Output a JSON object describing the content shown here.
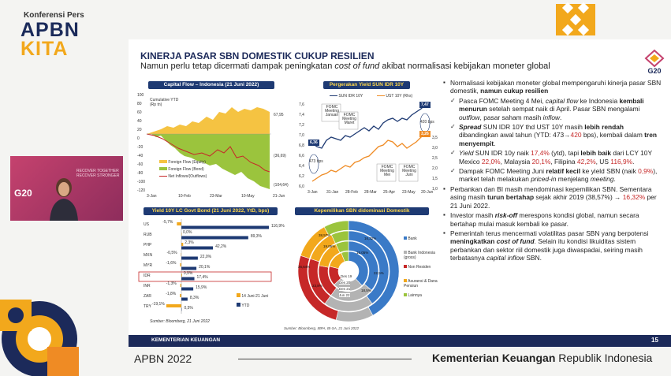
{
  "brand": {
    "small": "Konferensi Pers",
    "apbn": "APBN",
    "kita": "KITA"
  },
  "colors": {
    "navy": "#1c2a5a",
    "gold": "#f2a81c",
    "equity": "#f5c342",
    "bond": "#9bc43d",
    "net": "#c62828",
    "sun": "#1e3a73",
    "ust": "#ef8b24"
  },
  "slide": {
    "title": "KINERJA PASAR SBN DOMESTIK CUKUP RESILIEN",
    "subtitle_a": "Namun perlu tetap dicermati dampak peningkatan ",
    "subtitle_i": "cost of fund",
    "subtitle_b": " akibat normalisasi kebijakan moneter global",
    "page_number": "15",
    "footer_org": "KEMENTERIAN KEUANGAN",
    "source": "Sumber: Bloomberg, IBPA, BI-SA, 21 Juni 2022"
  },
  "capital_flow": {
    "title": "Capital Flow – Indonesia (21 Juni 2022)",
    "unit_label": "Cumulative YTD",
    "unit_label2": "(Rp tn)",
    "y_ticks": [
      "100",
      "80",
      "60",
      "40",
      "20",
      "0",
      "-20",
      "-40",
      "-60",
      "-80",
      "-100",
      "-120"
    ],
    "x_ticks": [
      "3-Jan",
      "10-Feb",
      "23-Mar",
      "10-May",
      "21-Jun"
    ],
    "legend": [
      "Foreign Flow (Equity)",
      "Foreign Flow (Bond)",
      "Net Inflows/(Outflows)"
    ],
    "end_labels": [
      "67,95",
      "(36,69)",
      "(104,64)"
    ]
  },
  "yield_chart": {
    "title": "Pergerakan Yield SUN IDR 10Y",
    "legend_sun": "SUN IDR 10Y",
    "legend_ust": "UST 10Y (Rhs)",
    "y_left": [
      "7,6",
      "7,4",
      "7,2",
      "7,0",
      "6,8",
      "6,6",
      "6,4",
      "6,2",
      "6,0"
    ],
    "y_right": [
      "3,5",
      "3,0",
      "2,5",
      "2,0",
      "1,5",
      "1,0"
    ],
    "x_ticks": [
      "3-Jan",
      "31-Jan",
      "28-Feb",
      "28-Mar",
      "25-Apr",
      "23-May",
      "20-Jun"
    ],
    "annotations": [
      "FOMC Meeting Januari",
      "FOMC Meeting Maret",
      "FOMC Meeting Mei",
      "FOMC Meeting Juni"
    ],
    "labels": {
      "start_sun": "6,36",
      "end_sun": "7,47",
      "end_ust": "3,26",
      "bps_left": "473 bps",
      "bps_right": "420 bps"
    }
  },
  "govt_bond": {
    "title": "Yield 10Y LC Govt Bond (21 Juni 2022, YtD, bps)",
    "countries": [
      "US",
      "RUB",
      "PHP",
      "MXN",
      "MYR",
      "IDR",
      "INR",
      "ZAR",
      "TRY"
    ],
    "ytd_labels": [
      "116,9%",
      "89,3%",
      "42,2%",
      "22,0%",
      "20,1%",
      "17,4%",
      "15,9%",
      "8,3%",
      "0,5%"
    ],
    "week_labels": [
      "-5,7%",
      "0,0%",
      "2,3%",
      "-0,5%",
      "-1,6%",
      "0,9%",
      "-1,3%",
      "-1,8%",
      "-19,1%"
    ],
    "ytd": [
      116.9,
      89.3,
      42.2,
      22.0,
      20.1,
      17.4,
      15.9,
      8.3,
      0.5
    ],
    "week": [
      -5.7,
      0.0,
      2.3,
      -0.5,
      -1.6,
      0.9,
      -1.3,
      -1.8,
      -19.1
    ],
    "legend": [
      "14 Juni-21 Juni",
      "YTD"
    ],
    "source": "Sumber: Bloomberg, 21 Juni 2022"
  },
  "ownership": {
    "title": "Kepemilikan SBN didominasi Domestik",
    "legend": [
      "Bank",
      "Bank Indonesia (gross)",
      "Non Residen",
      "Asuransi & Dana Pensiun",
      "Lainnya"
    ],
    "ring_labels": [
      "Des 19",
      "Des 20",
      "Des 21",
      "Jun 22"
    ],
    "slice_labels": [
      "38,57%",
      "16,32%",
      "26,64%",
      "22,5%",
      "19,05%",
      "15,05%",
      "23,8%",
      "18,5%"
    ]
  },
  "bullets": [
    {
      "level": 1,
      "html": "Normalisasi kebijakan moneter global mempengaruhi kinerja pasar SBN domestik, <b>namun cukup resilien</b>"
    },
    {
      "level": 2,
      "html": "Pasca FOMC Meeting 4 Mei, <i>capital flow</i> ke Indonesia <b>kembali menurun</b> setelah sempat naik di April. Pasar SBN mengalami <i>outflow</i>, pasar saham masih <i>inflow</i>."
    },
    {
      "level": 2,
      "html": "<i><b>Spread</b></i> SUN IDR 10Y thd UST 10Y masih <b>lebih rendah</b> dibandingkan awal tahun (YTD: 473→<span style='color:#c62828'>420</span> bps), kembali dalam <b>tren menyempit</b>."
    },
    {
      "level": 2,
      "html": "<i>Yield</i> SUN IDR 10y naik <span style='color:#c62828'>17,4%</span> (ytd), tapi <b>lebih baik</b> dari LCY 10Y Mexico <span style='color:#c62828'>22,0%</span>, Malaysia <span style='color:#c62828'>20,1%</span>, Filipina <span style='color:#c62828'>42,2%</span>, US <span style='color:#c62828'>116,9%</span>."
    },
    {
      "level": 2,
      "html": "Dampak FOMC Meeting Juni <b>relatif kecil</b> ke yield SBN (naik <span style='color:#c62828'>0,9%</span>), market telah melakukan <i>priced-in</i> menjelang <i>meeting</i>."
    },
    {
      "level": 1,
      "html": "Perbankan dan BI masih mendominasi kepemilikan SBN. Sementara asing masih <b>turun bertahap</b> sejak akhir 2019 (38,57%) → <span style='color:#c62828'>16,32%</span> per 21 Juni 2022."
    },
    {
      "level": 1,
      "html": "Investor masih <b><i>risk-off</i></b> merespons kondisi global, namun secara bertahap mulai masuk kembali ke pasar."
    },
    {
      "level": 1,
      "html": "Pemerintah terus mencermati volatilitas pasar SBN yang berpotensi <b>meningkatkan <i>cost of fund</i></b>. Selain itu kondisi likuiditas sistem perbankan dan sektor riil domestik juga diwaspadai, seiring masih terbatasnya <i>capital inflow</i> SBN."
    }
  ],
  "bottom": {
    "apbn": "APBN 2022",
    "kemenkeu_bold": "Kementerian Keuangan",
    "kemenkeu_rest": " Republik Indonesia"
  },
  "video": {
    "g20": "G20",
    "tag": "RECOVER TOGETHER RECOVER STRONGER"
  }
}
